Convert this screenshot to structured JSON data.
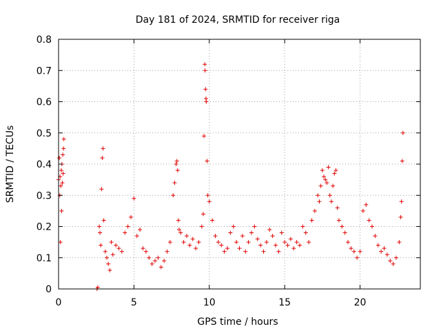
{
  "chart_data": {
    "type": "scatter",
    "title": "Day 181 of 2024, SRMTID for receiver riga",
    "xlabel": "GPS time / hours",
    "ylabel": "SRMTID / TECUs",
    "xlim": [
      0,
      24
    ],
    "ylim": [
      0,
      0.8
    ],
    "xticks": [
      0,
      5,
      10,
      15,
      20
    ],
    "yticks": [
      0,
      0.1,
      0.2,
      0.3,
      0.4,
      0.5,
      0.6,
      0.7,
      0.8
    ],
    "xtick_labels": [
      "0",
      "5",
      "10",
      "15",
      "20"
    ],
    "ytick_labels": [
      "0",
      "0.1",
      "0.2",
      "0.3",
      "0.4",
      "0.5",
      "0.6",
      "0.7",
      "0.8"
    ],
    "grid": true,
    "marker": "plus",
    "color": "#e00000",
    "series": [
      {
        "name": "SRMTID",
        "x": [
          0.0,
          0.05,
          0.08,
          0.1,
          0.12,
          0.15,
          0.18,
          0.2,
          0.22,
          0.25,
          0.28,
          0.3,
          0.33,
          0.35,
          2.55,
          2.6,
          2.7,
          2.75,
          2.8,
          2.85,
          2.9,
          2.95,
          3.0,
          3.1,
          3.2,
          3.3,
          3.4,
          3.5,
          3.6,
          3.8,
          4.0,
          4.2,
          4.4,
          4.6,
          4.8,
          5.0,
          5.2,
          5.4,
          5.6,
          5.8,
          6.0,
          6.2,
          6.4,
          6.6,
          6.8,
          7.0,
          7.2,
          7.4,
          7.6,
          7.7,
          7.8,
          7.85,
          7.9,
          7.95,
          8.0,
          8.1,
          8.3,
          8.5,
          8.7,
          8.9,
          9.1,
          9.3,
          9.5,
          9.6,
          9.65,
          9.7,
          9.72,
          9.75,
          9.78,
          9.8,
          9.85,
          9.9,
          10.0,
          10.2,
          10.4,
          10.6,
          10.8,
          11.0,
          11.2,
          11.4,
          11.6,
          11.8,
          12.0,
          12.2,
          12.4,
          12.6,
          12.8,
          13.0,
          13.2,
          13.4,
          13.6,
          13.8,
          14.0,
          14.2,
          14.4,
          14.6,
          14.8,
          15.0,
          15.2,
          15.4,
          15.6,
          15.8,
          16.0,
          16.2,
          16.4,
          16.6,
          16.8,
          17.0,
          17.2,
          17.3,
          17.4,
          17.5,
          17.6,
          17.7,
          17.8,
          17.9,
          18.0,
          18.1,
          18.2,
          18.3,
          18.4,
          18.5,
          18.6,
          18.8,
          19.0,
          19.2,
          19.4,
          19.6,
          19.8,
          20.0,
          20.2,
          20.4,
          20.6,
          20.8,
          21.0,
          21.2,
          21.4,
          21.6,
          21.8,
          22.0,
          22.2,
          22.4,
          22.6,
          22.7,
          22.75,
          22.8,
          22.85
        ],
        "y": [
          0.35,
          0.42,
          0.3,
          0.36,
          0.15,
          0.33,
          0.38,
          0.25,
          0.4,
          0.34,
          0.43,
          0.37,
          0.45,
          0.48,
          0.0,
          0.005,
          0.2,
          0.18,
          0.14,
          0.32,
          0.42,
          0.45,
          0.22,
          0.12,
          0.1,
          0.08,
          0.06,
          0.15,
          0.11,
          0.14,
          0.13,
          0.12,
          0.18,
          0.2,
          0.23,
          0.29,
          0.17,
          0.19,
          0.13,
          0.12,
          0.1,
          0.08,
          0.09,
          0.1,
          0.07,
          0.09,
          0.12,
          0.15,
          0.3,
          0.34,
          0.4,
          0.41,
          0.38,
          0.22,
          0.19,
          0.18,
          0.15,
          0.17,
          0.14,
          0.16,
          0.13,
          0.15,
          0.2,
          0.24,
          0.49,
          0.72,
          0.7,
          0.64,
          0.61,
          0.6,
          0.41,
          0.3,
          0.28,
          0.22,
          0.17,
          0.15,
          0.14,
          0.12,
          0.13,
          0.18,
          0.2,
          0.15,
          0.13,
          0.17,
          0.12,
          0.15,
          0.18,
          0.2,
          0.16,
          0.14,
          0.12,
          0.15,
          0.19,
          0.17,
          0.14,
          0.12,
          0.18,
          0.15,
          0.14,
          0.16,
          0.13,
          0.15,
          0.14,
          0.2,
          0.18,
          0.15,
          0.22,
          0.25,
          0.3,
          0.28,
          0.33,
          0.38,
          0.36,
          0.35,
          0.34,
          0.39,
          0.3,
          0.28,
          0.33,
          0.37,
          0.38,
          0.26,
          0.22,
          0.2,
          0.18,
          0.15,
          0.13,
          0.12,
          0.1,
          0.12,
          0.25,
          0.27,
          0.22,
          0.2,
          0.17,
          0.14,
          0.12,
          0.13,
          0.11,
          0.09,
          0.08,
          0.1,
          0.15,
          0.23,
          0.28,
          0.41,
          0.5
        ]
      }
    ]
  }
}
